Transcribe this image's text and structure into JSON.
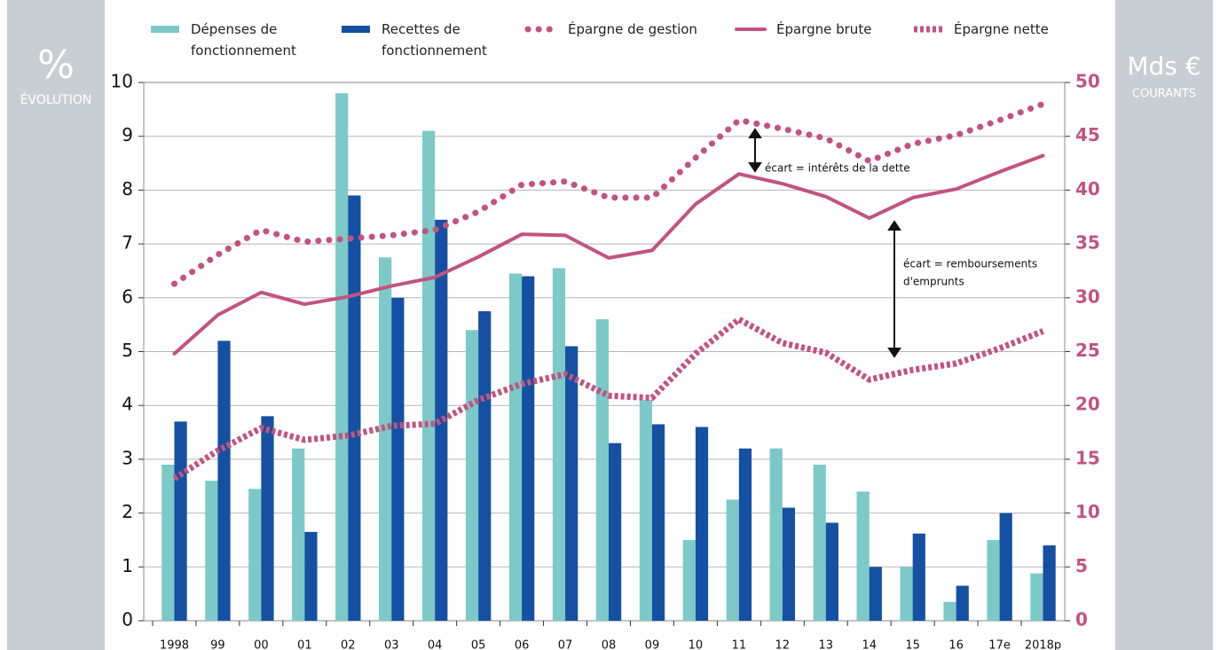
{
  "chart_data": {
    "type": "bar",
    "y_label": "%",
    "y_label_sub": "ÉVOLUTION",
    "y2_label": "Mds €",
    "y2_label_sub": "COURANTS",
    "categories": [
      "1998",
      "99",
      "00",
      "01",
      "02",
      "03",
      "04",
      "05",
      "06",
      "07",
      "08",
      "09",
      "10",
      "11",
      "12",
      "13",
      "14",
      "15",
      "16",
      "17e",
      "2018p"
    ],
    "series": [
      {
        "name": "Dépenses de fonctionnement",
        "type": "bar",
        "color": "#7cc9c7",
        "values": [
          2.9,
          2.6,
          2.45,
          3.2,
          9.8,
          6.75,
          9.1,
          5.4,
          6.45,
          6.55,
          5.6,
          4.1,
          1.5,
          2.25,
          3.2,
          2.9,
          2.4,
          1.0,
          0.35,
          1.5,
          0.88
        ]
      },
      {
        "name": "Recettes de fonctionnement",
        "type": "bar",
        "color": "#1550a2",
        "values": [
          3.7,
          5.2,
          3.8,
          1.65,
          7.9,
          6.0,
          7.45,
          5.75,
          6.4,
          5.1,
          3.3,
          3.65,
          3.6,
          3.2,
          2.1,
          1.82,
          1.0,
          1.62,
          0.65,
          2.0,
          1.4
        ]
      },
      {
        "name": "Épargne de gestion",
        "type": "line",
        "style": "dotted",
        "axis": "y2",
        "color": "#c2537f",
        "values": [
          31.3,
          34.0,
          36.3,
          35.2,
          35.5,
          35.8,
          36.3,
          38.0,
          40.5,
          40.8,
          39.3,
          39.3,
          43.0,
          46.5,
          45.7,
          44.8,
          42.7,
          44.3,
          45.1,
          46.5,
          48.0
        ]
      },
      {
        "name": "Épargne brute",
        "type": "line",
        "style": "solid",
        "axis": "y2",
        "color": "#c2537f",
        "values": [
          24.8,
          28.4,
          30.5,
          29.4,
          30.1,
          31.1,
          31.9,
          33.8,
          35.9,
          35.8,
          33.7,
          34.4,
          38.7,
          41.5,
          40.6,
          39.4,
          37.4,
          39.3,
          40.1,
          41.7,
          43.2
        ]
      },
      {
        "name": "Épargne nette",
        "type": "line",
        "style": "dashed",
        "axis": "y2",
        "color": "#c2537f",
        "values": [
          13.2,
          15.8,
          17.9,
          16.8,
          17.2,
          18.1,
          18.3,
          20.5,
          22.0,
          22.9,
          20.9,
          20.7,
          24.8,
          28.0,
          25.8,
          24.9,
          22.4,
          23.3,
          23.9,
          25.3,
          26.9
        ]
      }
    ],
    "ylim": [
      0,
      10
    ],
    "yticks": [
      0,
      1,
      2,
      3,
      4,
      5,
      6,
      7,
      8,
      9,
      10
    ],
    "y2lim": [
      0,
      50
    ],
    "y2ticks": [
      0,
      5,
      10,
      15,
      20,
      25,
      30,
      35,
      40,
      45,
      50
    ],
    "grid": true,
    "annotations": [
      "écart = intérêts de la dette",
      "écart = remboursements",
      "d'emprunts"
    ]
  }
}
